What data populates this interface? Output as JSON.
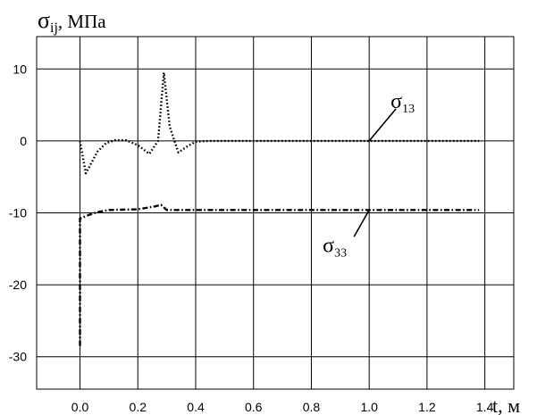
{
  "chart_data": {
    "type": "line",
    "ylabel": "σij, МПа",
    "xlabel": "t, м",
    "xlim": [
      -0.15,
      1.5
    ],
    "ylim": [
      -34.5,
      14.5
    ],
    "grid": true,
    "x_ticks": [
      {
        "value": 0.0,
        "label": "0.0"
      },
      {
        "value": 0.2,
        "label": "0.2"
      },
      {
        "value": 0.4,
        "label": "0.4"
      },
      {
        "value": 0.6,
        "label": "0.6"
      },
      {
        "value": 0.8,
        "label": "0.8"
      },
      {
        "value": 1.0,
        "label": "1.0"
      },
      {
        "value": 1.2,
        "label": "1.2"
      },
      {
        "value": 1.4,
        "label": "1.4"
      }
    ],
    "y_ticks": [
      {
        "value": 10,
        "label": "10"
      },
      {
        "value": 0,
        "label": "0"
      },
      {
        "value": -10,
        "label": "-10"
      },
      {
        "value": -20,
        "label": "-20"
      },
      {
        "value": -30,
        "label": "-30"
      }
    ],
    "series": [
      {
        "name": "σ13",
        "style": "dotted",
        "color": "#000000",
        "points": [
          [
            0.0,
            0.0
          ],
          [
            0.02,
            -4.5
          ],
          [
            0.04,
            -3.0
          ],
          [
            0.06,
            -1.5
          ],
          [
            0.09,
            -0.3
          ],
          [
            0.12,
            0.1
          ],
          [
            0.16,
            0.1
          ],
          [
            0.2,
            -0.6
          ],
          [
            0.24,
            -1.8
          ],
          [
            0.27,
            0.0
          ],
          [
            0.29,
            9.5
          ],
          [
            0.31,
            2.0
          ],
          [
            0.34,
            -1.6
          ],
          [
            0.37,
            -0.8
          ],
          [
            0.4,
            -0.1
          ],
          [
            0.45,
            0.0
          ],
          [
            1.0,
            0.0
          ],
          [
            1.38,
            0.0
          ]
        ]
      },
      {
        "name": "σ33",
        "style": "dashdot",
        "color": "#000000",
        "points": [
          [
            0.0,
            -28.5
          ],
          [
            0.0,
            -10.8
          ],
          [
            0.03,
            -10.3
          ],
          [
            0.06,
            -9.9
          ],
          [
            0.1,
            -9.6
          ],
          [
            0.2,
            -9.5
          ],
          [
            0.26,
            -9.1
          ],
          [
            0.28,
            -8.9
          ],
          [
            0.3,
            -9.6
          ],
          [
            0.4,
            -9.6
          ],
          [
            1.0,
            -9.6
          ],
          [
            1.38,
            -9.6
          ]
        ]
      }
    ],
    "annotations": [
      {
        "series": "σ13",
        "sigma": "σ",
        "subscript": "13",
        "point": [
          1.0,
          0.0
        ]
      },
      {
        "series": "σ33",
        "sigma": "σ",
        "subscript": "33",
        "point": [
          1.0,
          -9.6
        ]
      }
    ]
  }
}
